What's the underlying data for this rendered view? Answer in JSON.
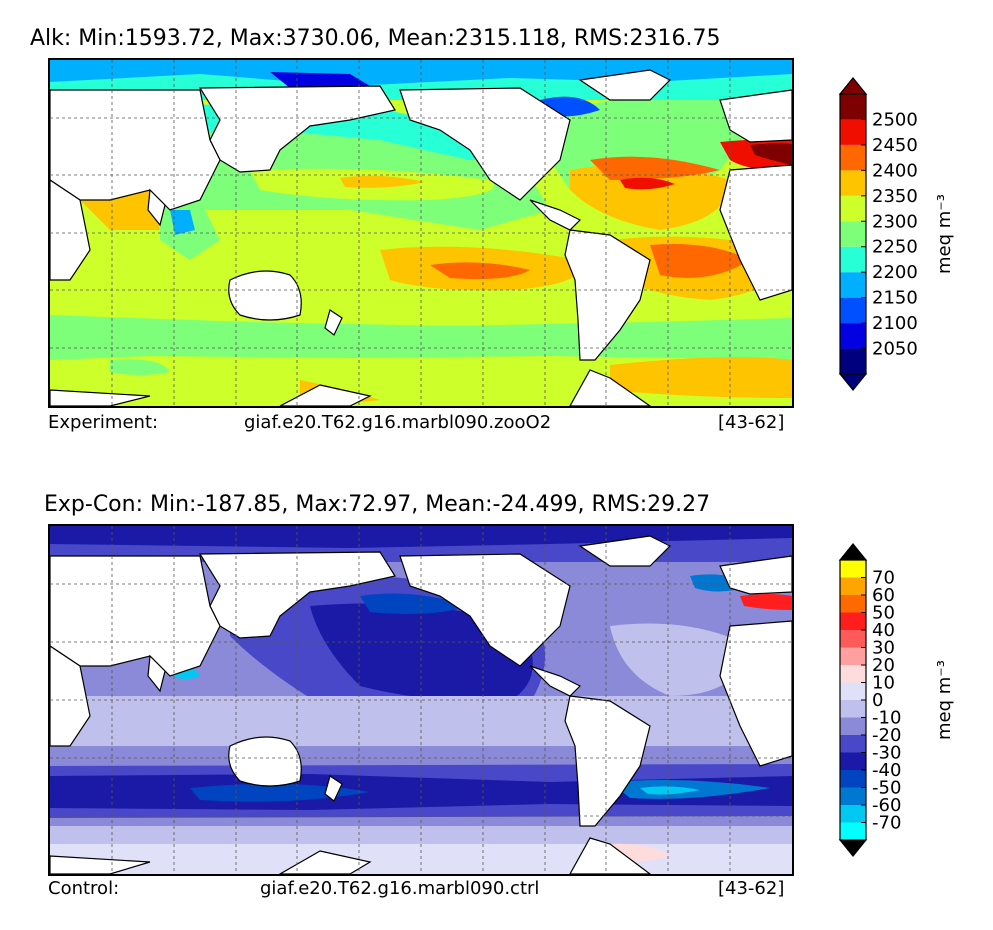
{
  "panels": [
    {
      "title": "Alk: Min:1593.72, Max:3730.06, Mean:2315.118, RMS:2316.75",
      "footer_label": "Experiment:",
      "footer_case": "giaf.e20.T62.g16.marbl090.zooO2",
      "footer_years": "[43-62]",
      "colorbar": {
        "unit": "meq m⁻³",
        "levels": [
          "2050",
          "2100",
          "2150",
          "2200",
          "2250",
          "2300",
          "2350",
          "2400",
          "2450",
          "2500"
        ],
        "colors": [
          "#00007f",
          "#0000e0",
          "#0050ff",
          "#00b0ff",
          "#27ffd7",
          "#7dff7a",
          "#cdff2a",
          "#ffc400",
          "#ff6800",
          "#f00e00",
          "#7f0000"
        ],
        "extend_low": "#00007f",
        "extend_high": "#7f0000"
      }
    },
    {
      "title": "Exp-Con: Min:-187.85, Max:72.97, Mean:-24.499, RMS:29.27",
      "footer_label": "Control:",
      "footer_case": "giaf.e20.T62.g16.marbl090.ctrl",
      "footer_years": "[43-62]",
      "colorbar": {
        "unit": "meq m⁻³",
        "levels": [
          "-70",
          "-60",
          "-50",
          "-40",
          "-30",
          "-20",
          "-10",
          "0",
          "10",
          "20",
          "30",
          "40",
          "50",
          "60",
          "70"
        ],
        "colors": [
          "#00ffff",
          "#00c8f0",
          "#0078d2",
          "#0044c0",
          "#1a1aa6",
          "#4848c8",
          "#8a8ad8",
          "#c0c0ec",
          "#e0e0f8",
          "#ffdcdc",
          "#ffa0a0",
          "#ff5a5a",
          "#ff1e1e",
          "#ff6a00",
          "#ffa500",
          "#ffff00"
        ],
        "extend_low": "#000000",
        "extend_high": "#000000"
      }
    }
  ]
}
